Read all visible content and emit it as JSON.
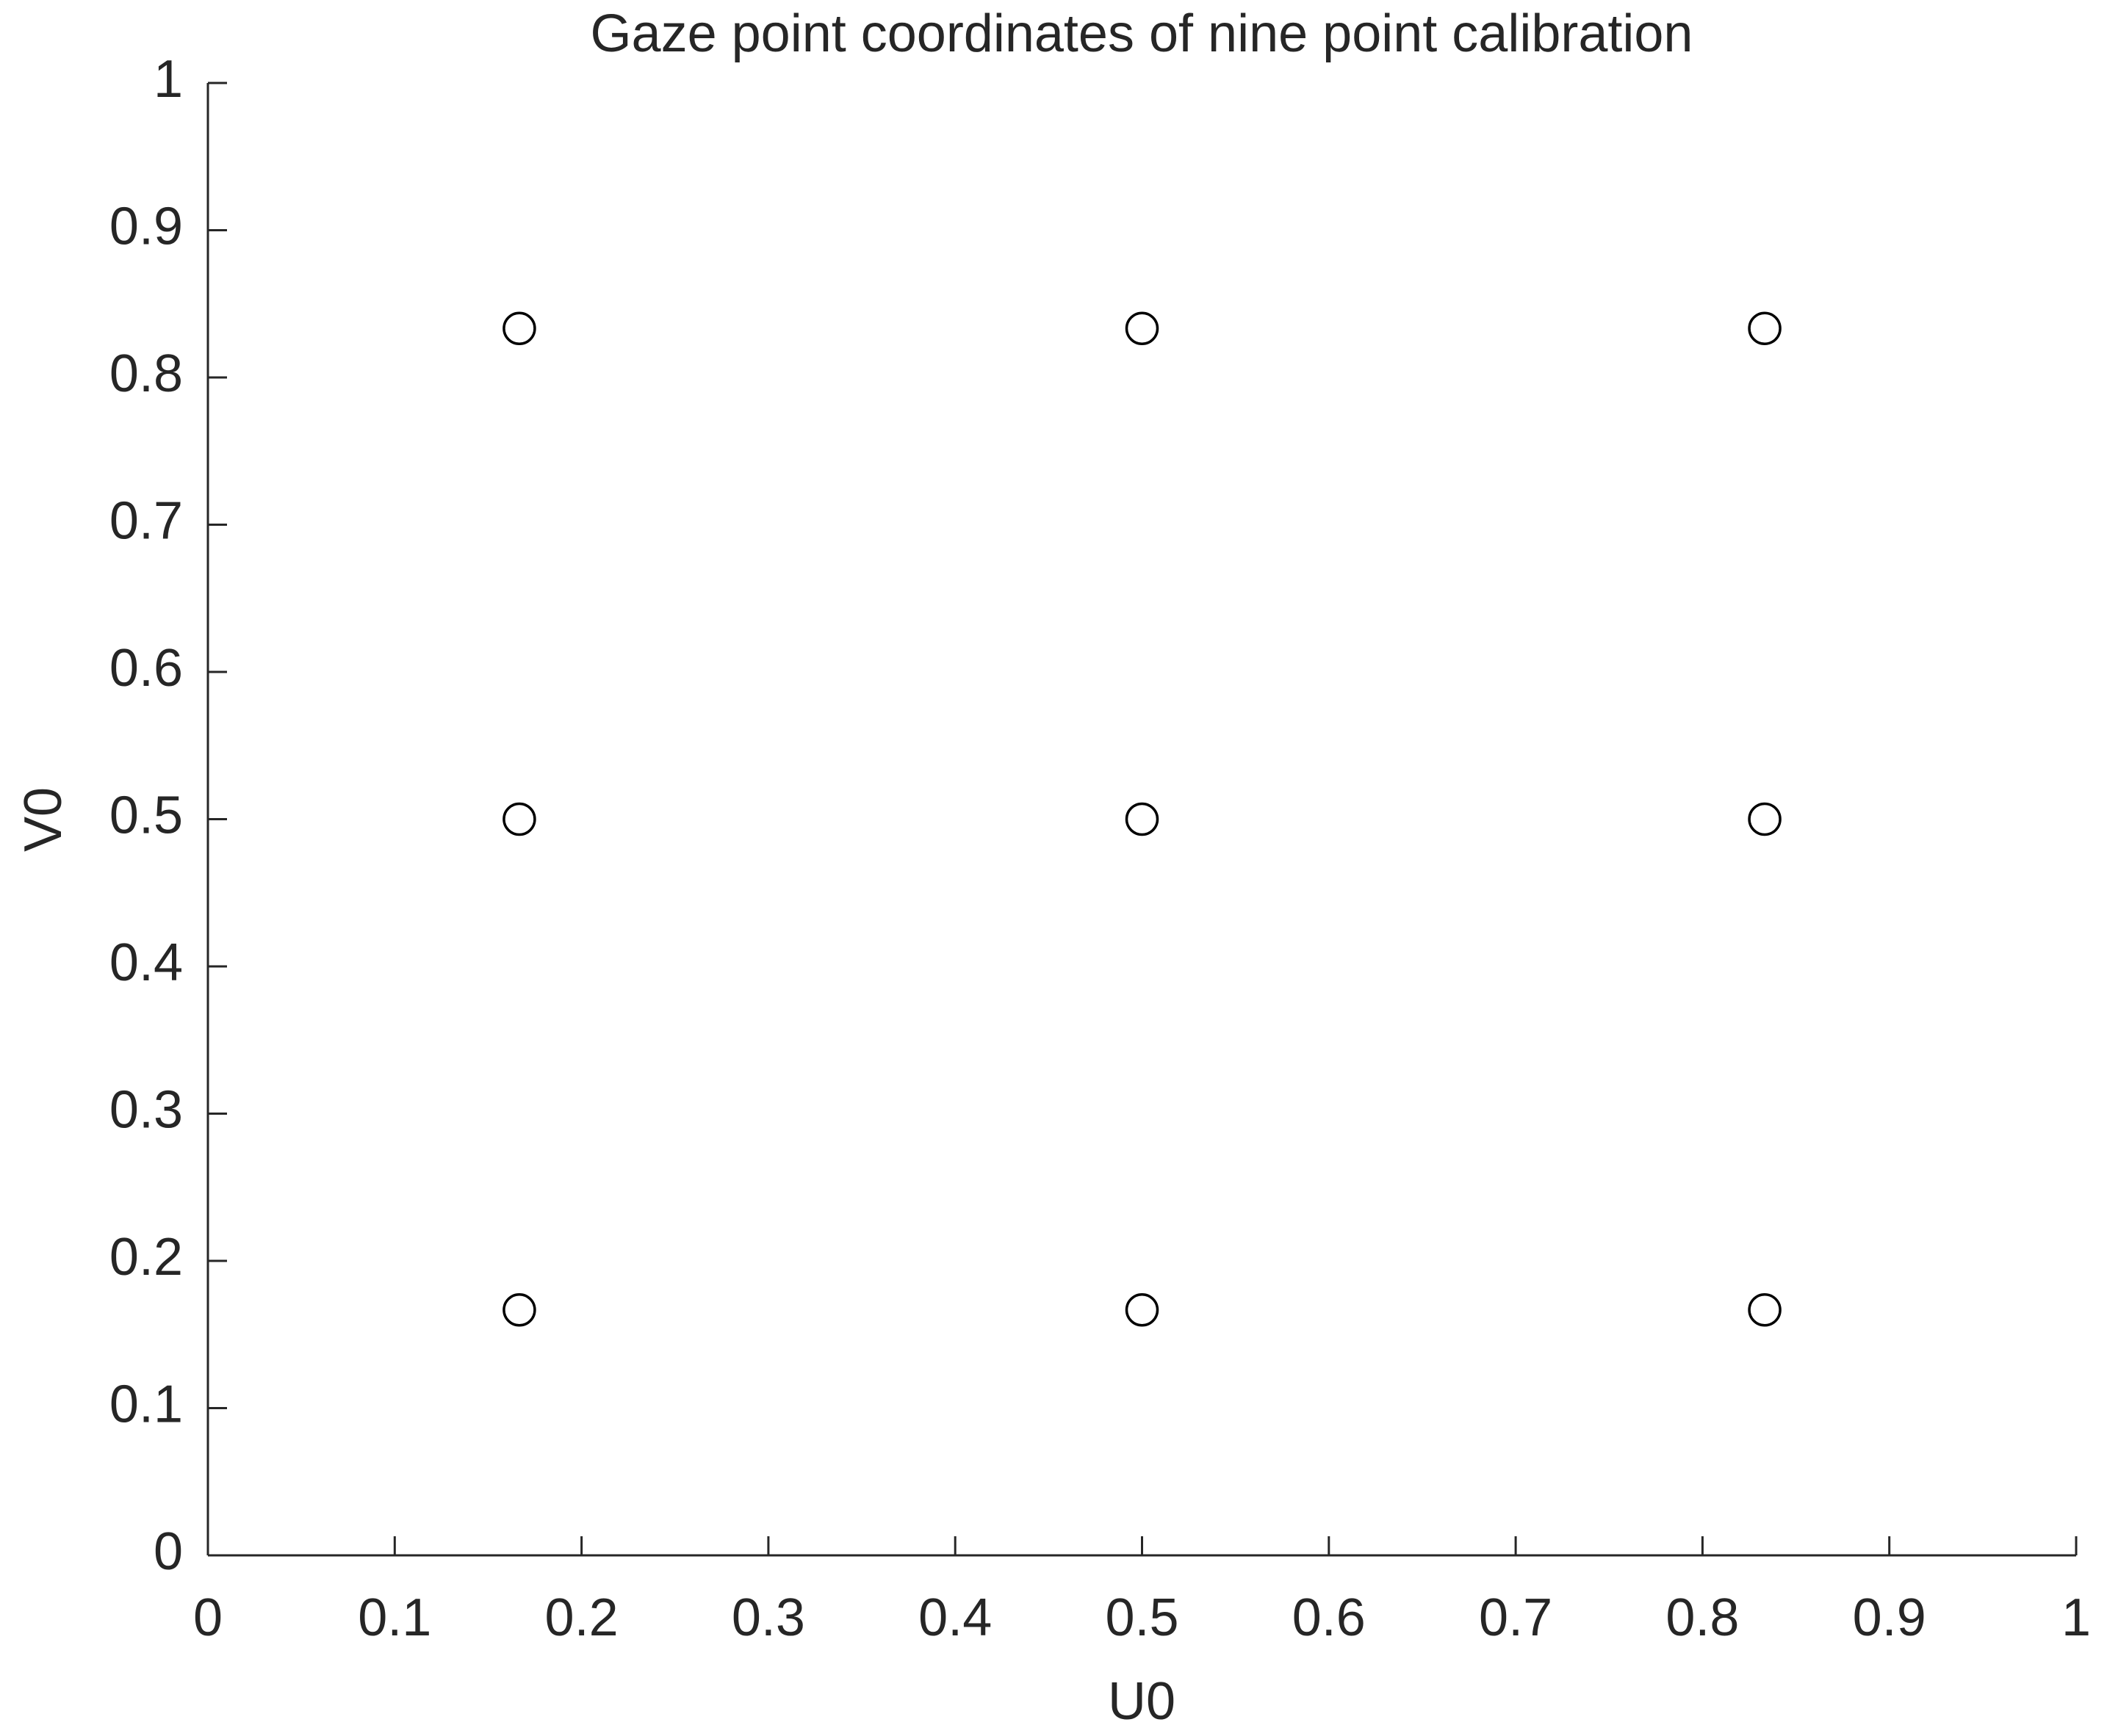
{
  "chart_data": {
    "type": "scatter",
    "title": "Gaze point coordinates of nine point calibration",
    "x_label": "U0",
    "y_label": "V0",
    "series": [
      {
        "color": "#000000",
        "x": [
          0.1667,
          0.5,
          0.8333,
          0.1667,
          0.5,
          0.8333,
          0.1667,
          0.5,
          0.8333
        ],
        "values": [
          0.8333,
          0.8333,
          0.8333,
          0.5,
          0.5,
          0.5,
          0.1667,
          0.1667,
          0.1667
        ]
      }
    ],
    "xlim": [
      0,
      1
    ],
    "ylim": [
      0,
      1
    ],
    "xticks": [
      0,
      0.1,
      0.2,
      0.3,
      0.4,
      0.5,
      0.6,
      0.7,
      0.8,
      0.9,
      1
    ],
    "yticks": [
      0,
      0.1,
      0.2,
      0.3,
      0.4,
      0.5,
      0.6,
      0.7,
      0.8,
      0.9,
      1
    ],
    "grid": false
  }
}
